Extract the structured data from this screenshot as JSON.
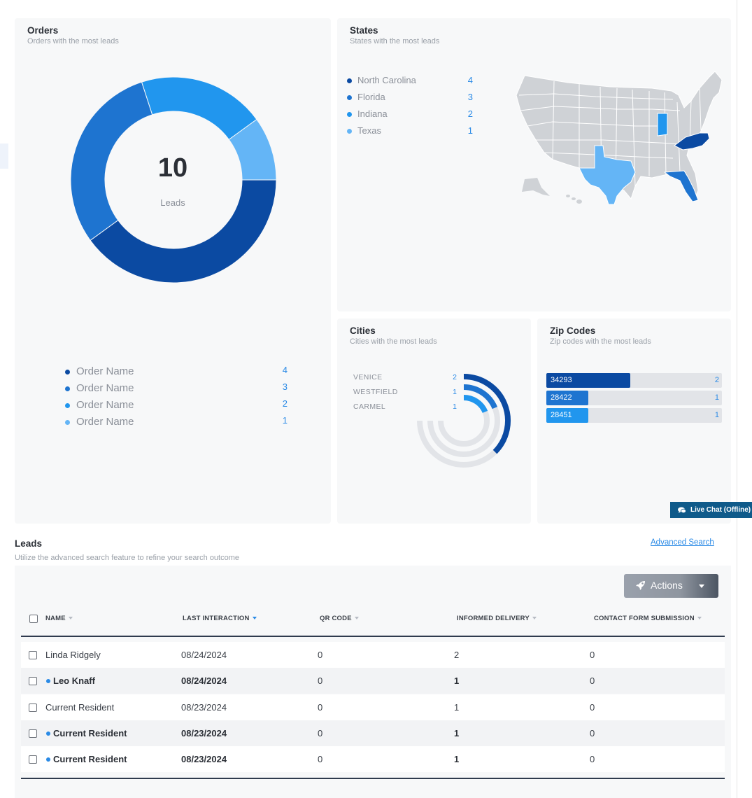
{
  "orders": {
    "title": "Orders",
    "subtitle": "Orders with the most leads",
    "total_value": "10",
    "total_label": "Leads",
    "legend": [
      {
        "name": "Order Name",
        "value": "4",
        "color": "#0b4aa2"
      },
      {
        "name": "Order Name",
        "value": "3",
        "color": "#1e74d0"
      },
      {
        "name": "Order Name",
        "value": "2",
        "color": "#2196ee"
      },
      {
        "name": "Order Name",
        "value": "1",
        "color": "#64b5f6"
      }
    ]
  },
  "states": {
    "title": "States",
    "subtitle": "States with the most leads",
    "legend": [
      {
        "name": "North Carolina",
        "value": "4",
        "color": "#0b4aa2"
      },
      {
        "name": "Florida",
        "value": "3",
        "color": "#1e74d0"
      },
      {
        "name": "Indiana",
        "value": "2",
        "color": "#2196ee"
      },
      {
        "name": "Texas",
        "value": "1",
        "color": "#64b5f6"
      }
    ]
  },
  "cities": {
    "title": "Cities",
    "subtitle": "Cities with the most leads",
    "legend": [
      {
        "name": "VENICE",
        "value": "2"
      },
      {
        "name": "WESTFIELD",
        "value": "1"
      },
      {
        "name": "CARMEL",
        "value": "1"
      }
    ]
  },
  "zip_codes": {
    "title": "Zip Codes",
    "subtitle": "Zip codes with the most leads",
    "rows": [
      {
        "zip": "34293",
        "value": "2",
        "color": "#0b4aa2"
      },
      {
        "zip": "28422",
        "value": "1",
        "color": "#1e74d0"
      },
      {
        "zip": "28451",
        "value": "1",
        "color": "#2196ee"
      }
    ]
  },
  "live_chat": {
    "label": "Live Chat (Offline)"
  },
  "leads": {
    "title": "Leads",
    "subtitle": "Utilize the advanced search feature to refine your search outcome",
    "advanced_search": "Advanced Search",
    "actions_label": "Actions",
    "columns": {
      "name": "NAME",
      "last_interaction": "LAST INTERACTION",
      "qr_code": "QR CODE",
      "informed_delivery": "INFORMED DELIVERY",
      "contact_form": "CONTACT FORM SUBMISSION"
    },
    "rows": [
      {
        "name": "Linda Ridgely",
        "last_interaction": "08/24/2024",
        "qr_code": "0",
        "informed_delivery": "2",
        "contact_form": "0"
      },
      {
        "name": "Leo Knaff",
        "last_interaction": "08/24/2024",
        "qr_code": "0",
        "informed_delivery": "1",
        "contact_form": "0"
      },
      {
        "name": "Current Resident",
        "last_interaction": "08/23/2024",
        "qr_code": "0",
        "informed_delivery": "1",
        "contact_form": "0"
      },
      {
        "name": "Current Resident",
        "last_interaction": "08/23/2024",
        "qr_code": "0",
        "informed_delivery": "1",
        "contact_form": "0"
      },
      {
        "name": "Current Resident",
        "last_interaction": "08/23/2024",
        "qr_code": "0",
        "informed_delivery": "1",
        "contact_form": "0"
      }
    ]
  },
  "chart_data": [
    {
      "type": "pie",
      "title": "Orders",
      "categories": [
        "Order Name",
        "Order Name",
        "Order Name",
        "Order Name"
      ],
      "values": [
        4,
        3,
        2,
        1
      ],
      "colors": [
        "#0b4aa2",
        "#1e74d0",
        "#2196ee",
        "#64b5f6"
      ]
    },
    {
      "type": "bar",
      "title": "Cities",
      "categories": [
        "VENICE",
        "WESTFIELD",
        "CARMEL"
      ],
      "values": [
        2,
        1,
        1
      ],
      "ylim": [
        0,
        2
      ]
    },
    {
      "type": "bar",
      "title": "Zip Codes",
      "categories": [
        "34293",
        "28422",
        "28451"
      ],
      "values": [
        2,
        1,
        1
      ],
      "ylim": [
        0,
        2
      ]
    }
  ]
}
